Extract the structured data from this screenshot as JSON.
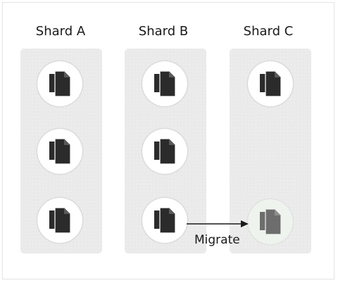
{
  "shards": [
    {
      "title": "Shard A",
      "document_count": 3
    },
    {
      "title": "Shard B",
      "document_count": 3
    },
    {
      "title": "Shard C",
      "document_count": 1
    }
  ],
  "migration": {
    "label": "Migrate",
    "from_shard": "Shard B",
    "to_shard": "Shard C",
    "document_state": "migrating"
  },
  "icons": {
    "document": "document-stack-icon"
  },
  "colors": {
    "column_background": "#eaeaea",
    "document_icon": "#2b2b2b",
    "migrating_document_icon": "#6d6d6d",
    "arrow": "#1a1a1a"
  }
}
